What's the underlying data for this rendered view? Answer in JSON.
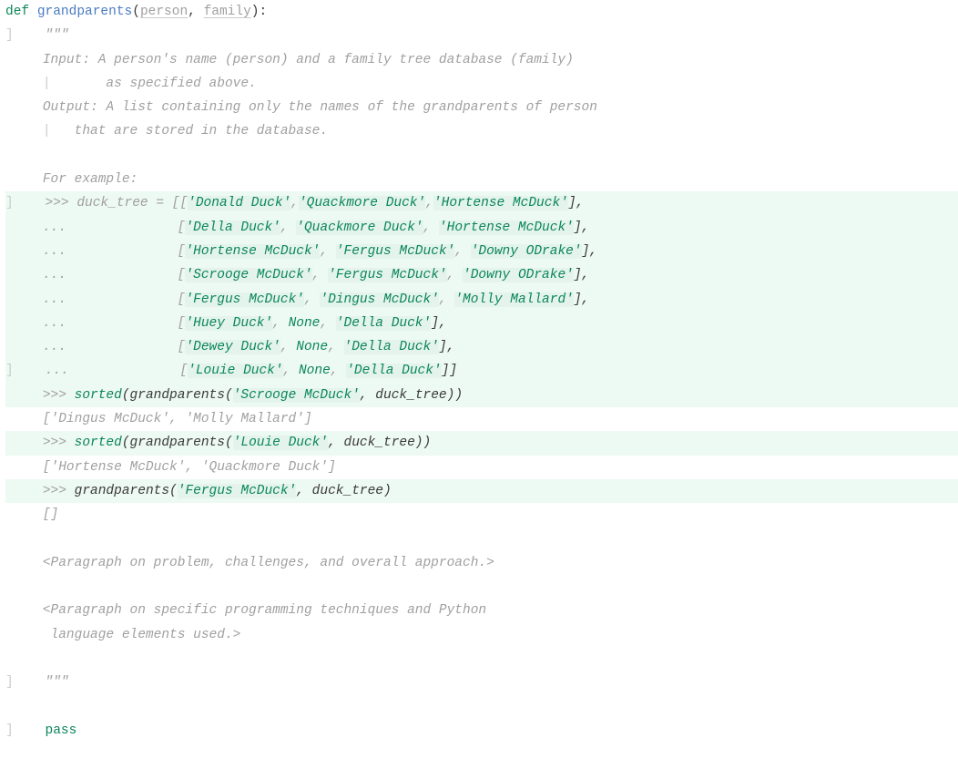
{
  "code": {
    "def_kw": "def",
    "fn_name": "grandparents",
    "param1": "person",
    "param2": "family",
    "triple_quote": "\"\"\"",
    "doc_line1": "Input: A person's name (person) and a family tree database (family)",
    "doc_line2": "       as specified above.",
    "doc_line3": "Output: A list containing only the names of the grandparents of person",
    "doc_line4": "   that are stored in the database.",
    "doc_line5": "For example:",
    "ex_assign_prefix": ">>> duck_tree = [[",
    "s_donald": "'Donald Duck'",
    "s_quackmore": "'Quackmore Duck'",
    "s_hortense": "'Hortense McDuck'",
    "cont": "...              [",
    "s_della": "'Della Duck'",
    "s_fergus": "'Fergus McDuck'",
    "s_downy": "'Downy ODrake'",
    "s_scrooge": "'Scrooge McDuck'",
    "s_dingus": "'Dingus McDuck'",
    "s_molly": "'Molly Mallard'",
    "s_huey": "'Huey Duck'",
    "s_dewey": "'Dewey Duck'",
    "s_louie": "'Louie Duck'",
    "none_kw": "None",
    "call_sorted1": ">>> sorted(grandparents(",
    "arg_scrooge": "'Scrooge McDuck'",
    "arg_tree": ", duck_tree))",
    "result1": "['Dingus McDuck', 'Molly Mallard']",
    "arg_louie": "'Louie Duck'",
    "result2": "['Hortense McDuck', 'Quackmore Duck']",
    "call_plain": ">>> grandparents(",
    "arg_fergus": "'Fergus McDuck'",
    "arg_tree2": ", duck_tree)",
    "result3": "[]",
    "para1": "<Paragraph on problem, challenges, and overall approach.>",
    "para2a": "<Paragraph on specific programming techniques and Python",
    "para2b": " language elements used.>",
    "pass_kw": "pass"
  },
  "colors": {
    "keyword": "#0b8658",
    "string": "#0b8658",
    "comment": "#a0a0a0",
    "function": "#4a7cc2",
    "highlight_bg": "#edf9f3",
    "string_hl_bg": "#e4f4ed",
    "background": "#ffffff"
  }
}
